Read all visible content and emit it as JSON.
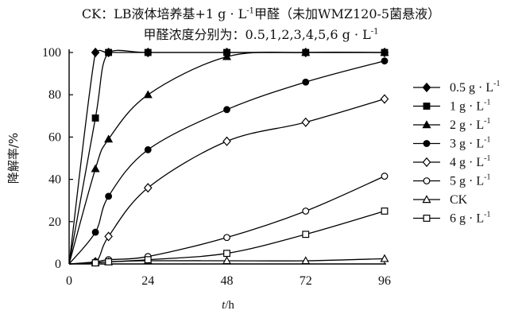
{
  "chart_data": {
    "type": "line",
    "title_lines": [
      "CK：LB液体培养基+1 g · L",
      "甲醛浓度分别为：0.5,1,2,3,4,5,6 g · L"
    ],
    "title_suffix_line1": "甲醛（未加WMZ120-5菌悬液）",
    "title_superscript": "-1",
    "xlabel_italic": "t",
    "xlabel_unit": "/h",
    "ylabel": "降解率/%",
    "xlim": [
      0,
      96
    ],
    "ylim": [
      0,
      100
    ],
    "xticks": [
      "0",
      "24",
      "48",
      "72",
      "96"
    ],
    "yticks": [
      "0",
      "20",
      "40",
      "60",
      "80",
      "100"
    ],
    "legend_position": "right",
    "series": [
      {
        "name": "0.5 g · L",
        "sup": "-1",
        "marker": "diamond-filled",
        "x": [
          0,
          8,
          12,
          24,
          48,
          72,
          96
        ],
        "y": [
          0,
          100,
          100,
          100,
          100,
          100,
          100
        ]
      },
      {
        "name": "1 g · L",
        "sup": "-1",
        "marker": "square-filled",
        "x": [
          0,
          8,
          12,
          24,
          48,
          72,
          96
        ],
        "y": [
          0,
          69,
          100,
          100,
          100,
          100,
          100
        ]
      },
      {
        "name": "2 g · L",
        "sup": "-1",
        "marker": "triangle-filled",
        "x": [
          0,
          8,
          12,
          24,
          48,
          72,
          96
        ],
        "y": [
          0,
          45,
          59,
          80,
          98,
          100,
          100
        ]
      },
      {
        "name": "3 g · L",
        "sup": "-1",
        "marker": "circle-filled",
        "x": [
          0,
          8,
          12,
          24,
          48,
          72,
          96
        ],
        "y": [
          0,
          15,
          32,
          54,
          73,
          86,
          96
        ]
      },
      {
        "name": "4 g · L",
        "sup": "-1",
        "marker": "diamond-open",
        "x": [
          0,
          8,
          12,
          24,
          48,
          72,
          96
        ],
        "y": [
          0,
          1,
          13,
          36,
          58,
          67,
          78
        ]
      },
      {
        "name": "5 g · L",
        "sup": "-1",
        "marker": "circle-open",
        "x": [
          0,
          8,
          12,
          24,
          48,
          72,
          96
        ],
        "y": [
          0,
          1,
          2,
          3.5,
          12.5,
          25,
          41.5
        ]
      },
      {
        "name": "CK",
        "sup": "",
        "marker": "triangle-open",
        "x": [
          0,
          8,
          12,
          24,
          48,
          72,
          96
        ],
        "y": [
          0,
          0.5,
          1,
          1.5,
          1.5,
          1.5,
          2.5
        ]
      },
      {
        "name": "6 g · L",
        "sup": "-1",
        "marker": "square-open",
        "x": [
          0,
          8,
          12,
          24,
          48,
          72,
          96
        ],
        "y": [
          0,
          0.5,
          1,
          2,
          5,
          14,
          25
        ]
      }
    ]
  }
}
